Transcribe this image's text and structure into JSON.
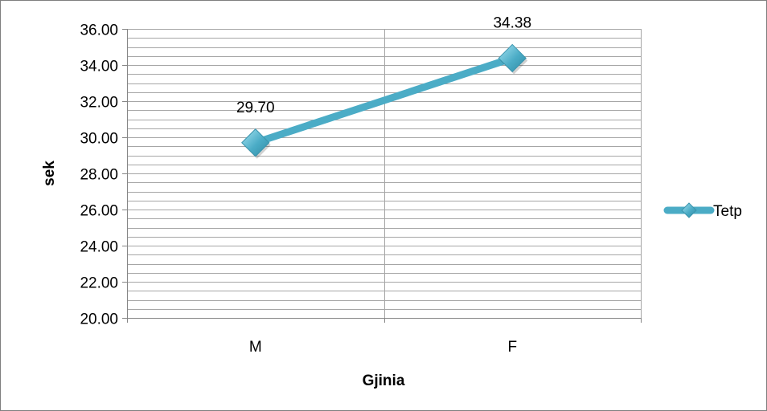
{
  "chart_data": {
    "type": "line",
    "title": "",
    "xlabel": "Gjinia",
    "ylabel": "sek",
    "categories": [
      "M",
      "F"
    ],
    "series": [
      {
        "name": "Tetp",
        "values": [
          29.7,
          34.38
        ],
        "data_labels": [
          "29.70",
          "34.38"
        ]
      }
    ],
    "ylim": [
      20.0,
      36.0
    ],
    "y_ticks": [
      "20.00",
      "22.00",
      "24.00",
      "26.00",
      "28.00",
      "30.00",
      "32.00",
      "34.00",
      "36.00"
    ],
    "y_major_step": 2,
    "y_minor_step": 0.5,
    "grid": true,
    "legend_position": "right",
    "colors": {
      "line": "#4bacc6",
      "marker_fill": "#4bacc6",
      "marker_highlight": "#a6e3f2",
      "grid": "#a6a6a6",
      "axis": "#868686"
    }
  }
}
